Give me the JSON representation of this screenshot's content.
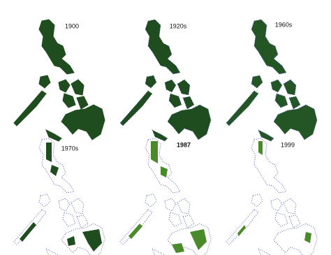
{
  "panels": [
    {
      "label": "1900"
    },
    {
      "label": "1920s"
    },
    {
      "label": "1960s"
    },
    {
      "label": "1970s"
    },
    {
      "label": "1987"
    },
    {
      "label": "1999"
    }
  ]
}
